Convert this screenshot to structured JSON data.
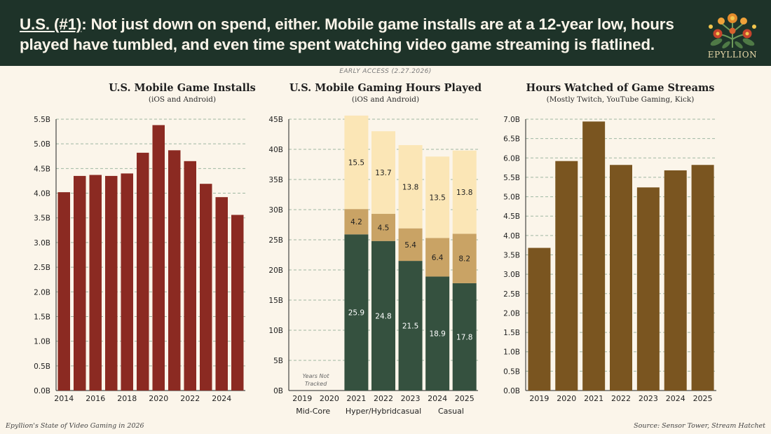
{
  "header": {
    "tag": "U.S. (#1)",
    "headline": ": Not just down on spend, either. Mobile game installs are at a 12-year low, hours played have tumbled, and even time spent watching video game streaming is flatlined.",
    "brand": "EPYLLION",
    "colors": {
      "background": "#1e3329",
      "text": "#fbf5ea"
    }
  },
  "early_access": "EARLY ACCESS (2.27.2026)",
  "footer": {
    "left": "Epyllion's State of Video Gaming in 2026",
    "right": "Source: Sensor Tower, Stream Hatchet"
  },
  "chart_data": [
    {
      "type": "bar",
      "title": "U.S. Mobile Game Installs",
      "subtitle": "(iOS and Android)",
      "categories": [
        "2014",
        "2015",
        "2016",
        "2017",
        "2018",
        "2019",
        "2020",
        "2021",
        "2022",
        "2023",
        "2024",
        "2025"
      ],
      "values": [
        4.02,
        4.35,
        4.37,
        4.35,
        4.4,
        4.82,
        5.38,
        4.87,
        4.65,
        4.19,
        3.92,
        3.56
      ],
      "xtick_labels": [
        "2014",
        "",
        "2016",
        "",
        "2018",
        "",
        "2020",
        "",
        "2022",
        "",
        "2024",
        ""
      ],
      "ylim": [
        0,
        5.5
      ],
      "yticks": [
        "0.0B",
        "0.5B",
        "1.0B",
        "1.5B",
        "2.0B",
        "2.5B",
        "3.0B",
        "3.5B",
        "4.0B",
        "4.5B",
        "5.0B",
        "5.5B"
      ],
      "color": "#8b2a22",
      "grid": true
    },
    {
      "type": "bar",
      "stacked": true,
      "title": "U.S. Mobile Gaming Hours Played",
      "subtitle": "(iOS and Android)",
      "categories": [
        "2019",
        "2020",
        "2021",
        "2022",
        "2023",
        "2024",
        "2025"
      ],
      "series": [
        {
          "name": "Mid-Core",
          "color": "#35513f",
          "label_color": "#ffffff",
          "values": [
            null,
            null,
            25.9,
            24.8,
            21.5,
            18.9,
            17.8
          ]
        },
        {
          "name": "Hyper/Hybridcasual",
          "color": "#c9a365",
          "label_color": "#1f1f1f",
          "values": [
            null,
            null,
            4.2,
            4.5,
            5.4,
            6.4,
            8.2
          ]
        },
        {
          "name": "Casual",
          "color": "#fbe6b6",
          "label_color": "#1f1f1f",
          "values": [
            null,
            null,
            15.5,
            13.7,
            13.8,
            13.5,
            13.8
          ]
        }
      ],
      "ylim": [
        0,
        45
      ],
      "yticks": [
        "0B",
        "5B",
        "10B",
        "15B",
        "20B",
        "25B",
        "30B",
        "35B",
        "40B",
        "45B"
      ],
      "annotation": [
        "Years Not",
        "Tracked"
      ],
      "legend_labels": [
        "Mid-Core",
        "Hyper/Hybridcasual",
        "Casual"
      ],
      "grid": true
    },
    {
      "type": "bar",
      "title": "Hours Watched of Game Streams",
      "subtitle": "(Mostly Twitch, YouTube Gaming, Kick)",
      "categories": [
        "2019",
        "2020",
        "2021",
        "2022",
        "2023",
        "2024",
        "2025"
      ],
      "values": [
        3.68,
        5.92,
        6.94,
        5.82,
        5.24,
        5.68,
        5.82
      ],
      "ylim": [
        0,
        7.0
      ],
      "yticks": [
        "0.0B",
        "0.5B",
        "1.0B",
        "1.5B",
        "2.0B",
        "2.5B",
        "3.0B",
        "3.5B",
        "4.0B",
        "4.5B",
        "5.0B",
        "5.5B",
        "6.0B",
        "6.5B",
        "7.0B"
      ],
      "color": "#7a5520",
      "grid": true
    }
  ]
}
